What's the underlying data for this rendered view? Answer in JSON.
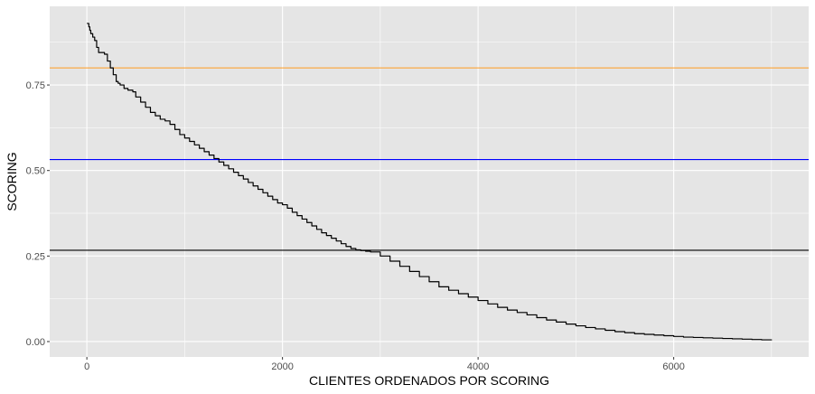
{
  "chart_data": {
    "type": "line",
    "title": "",
    "xlabel": "CLIENTES ORDENADOS POR SCORING",
    "ylabel": "SCORING",
    "xlim": [
      -380,
      7380
    ],
    "ylim": [
      -0.045,
      0.98
    ],
    "x_ticks": [
      {
        "value": 0,
        "label": "0"
      },
      {
        "value": 2000,
        "label": "2000"
      },
      {
        "value": 4000,
        "label": "4000"
      },
      {
        "value": 6000,
        "label": "6000"
      }
    ],
    "y_ticks": [
      {
        "value": 0.0,
        "label": "0.00"
      },
      {
        "value": 0.25,
        "label": "0.25"
      },
      {
        "value": 0.5,
        "label": "0.50"
      },
      {
        "value": 0.75,
        "label": "0.75"
      }
    ],
    "grid": true,
    "panel_background": "#e5e5e5",
    "grid_color": "#ffffff",
    "hlines": [
      {
        "name": "threshold-high",
        "y": 0.8,
        "color": "#ff9a1f"
      },
      {
        "name": "threshold-mid",
        "y": 0.532,
        "color": "#0000ff"
      },
      {
        "name": "threshold-low",
        "y": 0.267,
        "color": "#000000"
      }
    ],
    "series": [
      {
        "name": "scoring",
        "color": "#000000",
        "x": [
          0,
          20,
          30,
          40,
          60,
          80,
          100,
          120,
          150,
          180,
          210,
          240,
          270,
          300,
          320,
          340,
          380,
          420,
          470,
          500,
          550,
          600,
          650,
          700,
          750,
          800,
          850,
          900,
          950,
          1000,
          1050,
          1100,
          1150,
          1200,
          1250,
          1300,
          1350,
          1400,
          1450,
          1500,
          1550,
          1600,
          1650,
          1700,
          1750,
          1800,
          1850,
          1900,
          1950,
          2000,
          2050,
          2100,
          2150,
          2200,
          2250,
          2300,
          2350,
          2400,
          2450,
          2500,
          2550,
          2600,
          2650,
          2700,
          2750,
          2800,
          2850,
          2900,
          3000,
          3100,
          3200,
          3300,
          3400,
          3500,
          3600,
          3700,
          3800,
          3900,
          4000,
          4100,
          4200,
          4300,
          4400,
          4500,
          4600,
          4700,
          4800,
          4900,
          5000,
          5100,
          5200,
          5300,
          5400,
          5500,
          5600,
          5700,
          5800,
          5900,
          6000,
          6100,
          6200,
          6300,
          6400,
          6500,
          6600,
          6700,
          6800,
          6900,
          7000
        ],
        "values": [
          0.93,
          0.92,
          0.91,
          0.9,
          0.89,
          0.88,
          0.86,
          0.845,
          0.845,
          0.84,
          0.82,
          0.8,
          0.78,
          0.76,
          0.755,
          0.75,
          0.74,
          0.735,
          0.73,
          0.715,
          0.7,
          0.685,
          0.67,
          0.66,
          0.65,
          0.645,
          0.635,
          0.62,
          0.605,
          0.595,
          0.585,
          0.575,
          0.565,
          0.555,
          0.545,
          0.535,
          0.525,
          0.515,
          0.505,
          0.495,
          0.485,
          0.475,
          0.465,
          0.455,
          0.445,
          0.435,
          0.425,
          0.415,
          0.405,
          0.4,
          0.39,
          0.378,
          0.368,
          0.358,
          0.348,
          0.338,
          0.328,
          0.318,
          0.31,
          0.302,
          0.294,
          0.286,
          0.278,
          0.272,
          0.268,
          0.266,
          0.264,
          0.262,
          0.25,
          0.235,
          0.22,
          0.205,
          0.19,
          0.175,
          0.16,
          0.15,
          0.14,
          0.13,
          0.12,
          0.11,
          0.1,
          0.092,
          0.085,
          0.078,
          0.07,
          0.063,
          0.057,
          0.051,
          0.046,
          0.041,
          0.037,
          0.033,
          0.029,
          0.026,
          0.023,
          0.021,
          0.019,
          0.017,
          0.015,
          0.013,
          0.012,
          0.011,
          0.01,
          0.009,
          0.008,
          0.007,
          0.006,
          0.005,
          0.004
        ]
      }
    ]
  }
}
